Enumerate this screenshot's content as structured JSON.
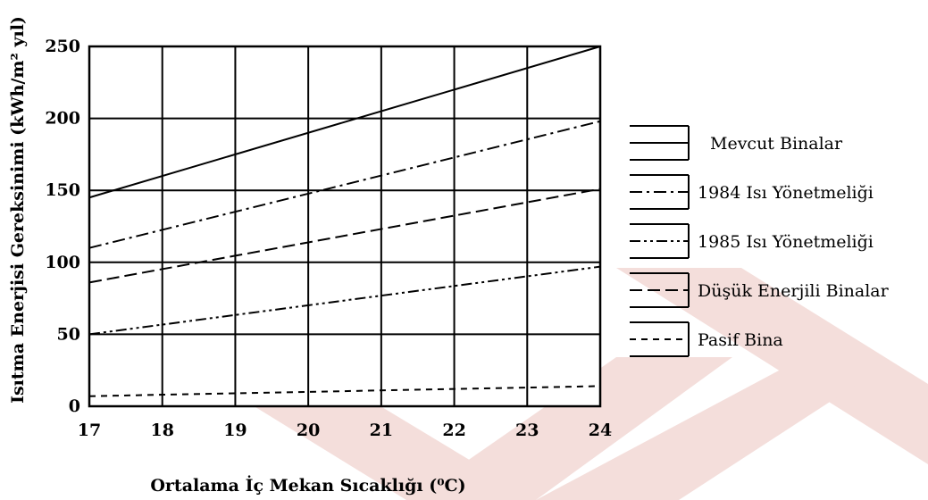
{
  "chart_data": {
    "type": "line",
    "title": "",
    "xlabel": "Ortalama İç Mekan Sıcaklığı (⁰C)",
    "ylabel": "Isıtma Enerjisi Gereksinimi (kWh/m² yıl)",
    "xlim": [
      17,
      24
    ],
    "ylim": [
      0,
      250
    ],
    "x_ticks": [
      17,
      18,
      19,
      20,
      21,
      22,
      23,
      24
    ],
    "y_ticks": [
      0,
      50,
      100,
      150,
      200,
      250
    ],
    "grid": true,
    "legend_position": "right",
    "x": [
      17,
      24
    ],
    "series": [
      {
        "name": "Mevcut Binalar",
        "values": [
          145,
          250
        ],
        "dash": "solid"
      },
      {
        "name": "1984 Isı Yönetmeliği",
        "values": [
          110,
          198
        ],
        "dash": "dashdot"
      },
      {
        "name": "1985 Isı Yönetmeliği",
        "values": [
          50,
          97
        ],
        "dash": "dashdotdot"
      },
      {
        "name": "Düşük Enerjili Binalar",
        "values": [
          86,
          151
        ],
        "dash": "longdash"
      },
      {
        "name": "Pasif Bina",
        "values": [
          7,
          14
        ],
        "dash": "shortdash"
      }
    ]
  },
  "watermark_color": "#f3d9d6"
}
